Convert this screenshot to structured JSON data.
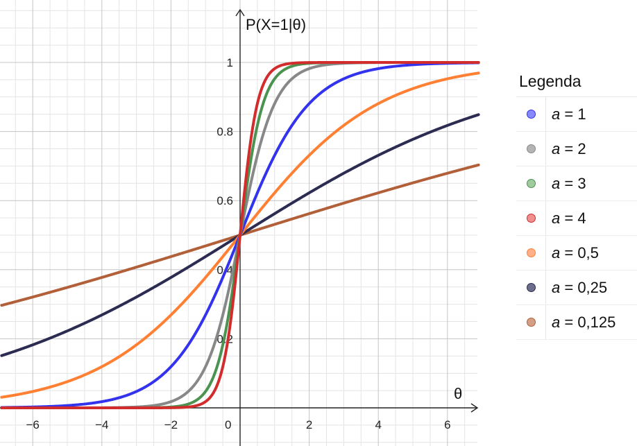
{
  "chart_data": {
    "type": "line",
    "function": "logistic",
    "ylabel": "P(X=1|θ)",
    "xlabel": "θ",
    "xlim": [
      -6.9,
      6.9
    ],
    "ylim": [
      -0.1,
      1.17
    ],
    "x_tick_labels": [
      "−6",
      "−4",
      "−2",
      "0",
      "2",
      "4",
      "6"
    ],
    "x_tick_values": [
      -6,
      -4,
      -2,
      0,
      2,
      4,
      6
    ],
    "y_tick_labels": [
      "0.2",
      "0.4",
      "0.6",
      "0.8",
      "1"
    ],
    "y_tick_values": [
      0.2,
      0.4,
      0.6,
      0.8,
      1
    ],
    "grid": true,
    "legend_position": "right",
    "series": [
      {
        "name": "a = 1",
        "var": "a",
        "value_label": "= 1",
        "a": 1,
        "color": "#3333ee",
        "swatch": "#8888ff"
      },
      {
        "name": "a = 2",
        "var": "a",
        "value_label": "= 2",
        "a": 2,
        "color": "#888888",
        "swatch": "#b4b4b4"
      },
      {
        "name": "a = 3",
        "var": "a",
        "value_label": "= 3",
        "a": 3,
        "color": "#4c9250",
        "swatch": "#9fcb9f"
      },
      {
        "name": "a = 4",
        "var": "a",
        "value_label": "= 4",
        "a": 4,
        "color": "#d22c2c",
        "swatch": "#ef8f8f"
      },
      {
        "name": "a = 0,5",
        "var": "a",
        "value_label": "= 0,5",
        "a": 0.5,
        "color": "#ff7f33",
        "swatch": "#ffb089"
      },
      {
        "name": "a = 0,25",
        "var": "a",
        "value_label": "= 0,25",
        "a": 0.25,
        "color": "#2c2c52",
        "swatch": "#6d6d8c"
      },
      {
        "name": "a = 0,125",
        "var": "a",
        "value_label": "= 0,125",
        "a": 0.125,
        "color": "#b2603a",
        "swatch": "#d29f87"
      }
    ],
    "draw_order": [
      6,
      5,
      4,
      0,
      1,
      2,
      3
    ]
  },
  "legend": {
    "title": "Legenda"
  }
}
